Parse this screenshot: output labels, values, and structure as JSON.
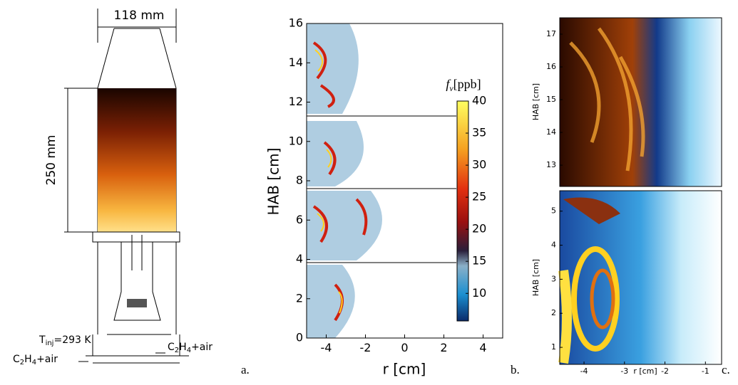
{
  "panels": {
    "a": {
      "letter": "a.",
      "width_label": "118 mm",
      "height_label": "250 mm",
      "temperature": {
        "symbol": "T",
        "subscript": "inj",
        "rest": "=293 K"
      },
      "inlet_left": {
        "pre": "C",
        "sub1": "2",
        "mid": "H",
        "sub2": "4",
        "post": "+air"
      },
      "inlet_right": {
        "pre": "C",
        "sub1": "2",
        "mid": "H",
        "sub2": "4",
        "post": "+air"
      }
    },
    "b": {
      "letter": "b.",
      "y_label": "HAB [cm]",
      "x_label": "r [cm]",
      "ylim": [
        0,
        16
      ],
      "yticks": [
        0,
        2,
        4,
        6,
        8,
        10,
        12,
        14,
        16
      ],
      "xlim": [
        -5,
        5
      ],
      "xticks": [
        -4,
        -2,
        0,
        2,
        4
      ],
      "colorbar": {
        "symbol": "f",
        "subscript": "v",
        "unit": "[ppb]",
        "lim": [
          5.7,
          40
        ],
        "ticks": [
          10,
          15,
          20,
          25,
          30,
          35,
          40
        ]
      }
    },
    "c": {
      "letter": "c.",
      "x_label": "r [cm]",
      "xlim": [
        -4.6,
        -0.6
      ],
      "xticks": [
        -4,
        -3,
        -2,
        -1
      ],
      "top": {
        "y_label": "HAB [cm]",
        "ylim": [
          12.35,
          17.5
        ],
        "yticks": [
          13,
          14,
          15,
          16,
          17
        ]
      },
      "bottom": {
        "y_label": "HAB [cm]",
        "ylim": [
          0.5,
          5.6
        ],
        "yticks": [
          1,
          2,
          3,
          4,
          5
        ]
      }
    }
  }
}
